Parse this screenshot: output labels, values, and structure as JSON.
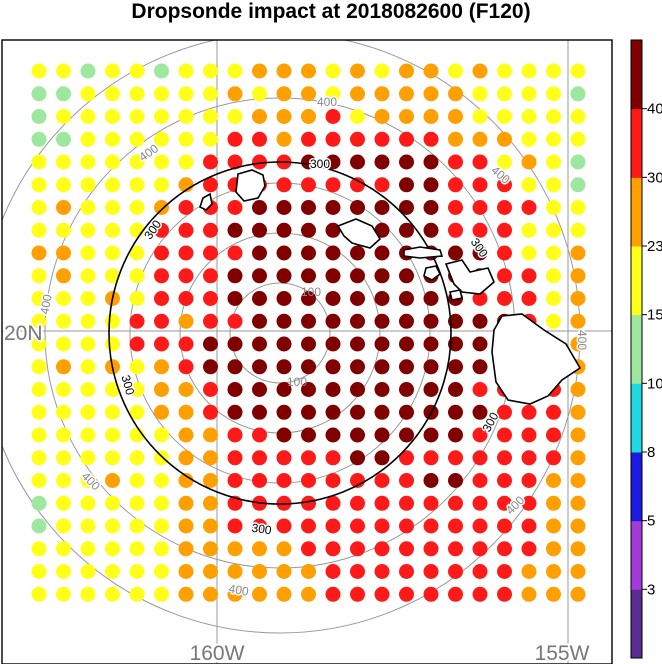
{
  "chart_data": {
    "type": "scatter",
    "title": "Dropsonde impact at 2018082600 (F120)",
    "x_tick_labels": [
      "160W",
      "155W"
    ],
    "y_tick_labels": [
      "20N"
    ],
    "ring_labels": [
      "100",
      "100",
      "300",
      "300",
      "300",
      "300",
      "300",
      "300",
      "400",
      "400",
      "400",
      "400",
      "400",
      "400",
      "400",
      "400"
    ],
    "colorbar_labels": [
      "3",
      "5",
      "8",
      "10",
      "15",
      "23",
      "30",
      "40"
    ],
    "colorbar_colors": [
      "#5b2d90",
      "#a23bd9",
      "#1a1ae0",
      "#20d8e0",
      "#9ee79e",
      "#ffff1a",
      "#ff9f00",
      "#ff1a1a",
      "#800000"
    ],
    "grid": true,
    "legend_placement": "right",
    "levels": [
      1,
      2,
      3,
      4,
      5,
      6,
      7,
      8,
      9,
      10,
      11,
      12,
      13,
      14,
      15,
      16,
      17,
      18,
      19,
      20,
      21,
      22,
      23,
      24
    ],
    "columns": [
      1,
      2,
      3,
      4,
      5,
      6,
      7,
      8,
      9,
      10,
      11,
      12,
      13,
      14,
      15,
      16,
      17,
      18,
      19,
      20,
      21,
      22,
      23
    ],
    "impact_grid": [
      "YYGYYGYYYOOOYOYOOYOYYYY",
      "GGYYYYYYOYOOYOOOOOYYYYG",
      "GYYYYYYYYOOORYOOOOYYYYY",
      "GGYYYYYYRRORRRRRROOOYYY",
      "YYYYYYYRRRRDDDDDDRRYOYG",
      "YYYYYYORRRRRRRRDDRRRYYG",
      "YOYYYORRRDDDDDDDDRRRRYY",
      "YYYYYRRRDDDDDDDDDRRRYYY",
      "OOYYYRRRRDDDDDDDDDDRYYO",
      "YOYYYRRRDDDDDDDDDDDRRYO",
      "YYYOYRRRDDDDDDDDDDRRRYO",
      "YYYYRRORRDDDDDDDDDDDRYO",
      "YYYYRRRDDDDDDDDDDDDRROO",
      "YOYOYORDDDDDDDDDDDDRRRO",
      "YYYYYOORDDDDDDDDDDRRRRO",
      "YYYYYOORDDDDDDDDDDDRRRO",
      "YYYYYYOORRDDDDDDDDRRRRO",
      "YYYYYYOORRRRRDDRRRRRRRO",
      "YYYOYYOORRRRRRRRDDRRROO",
      "GYYYYYOORRRRRRRRRRRRROO",
      "GYYYYYOORRRRRRRRRRRRROO",
      "YYYYYYOOOOORRRRRRRRRROO",
      "YYYYYYOOOOOORRRRRRRROOO",
      "YYYYYYOOOOOORRRRRRRROOO"
    ],
    "category_colors": {
      "G": "#9ee79e",
      "Y": "#ffff1a",
      "O": "#ff9f00",
      "R": "#ff1a1a",
      "D": "#800000"
    }
  }
}
